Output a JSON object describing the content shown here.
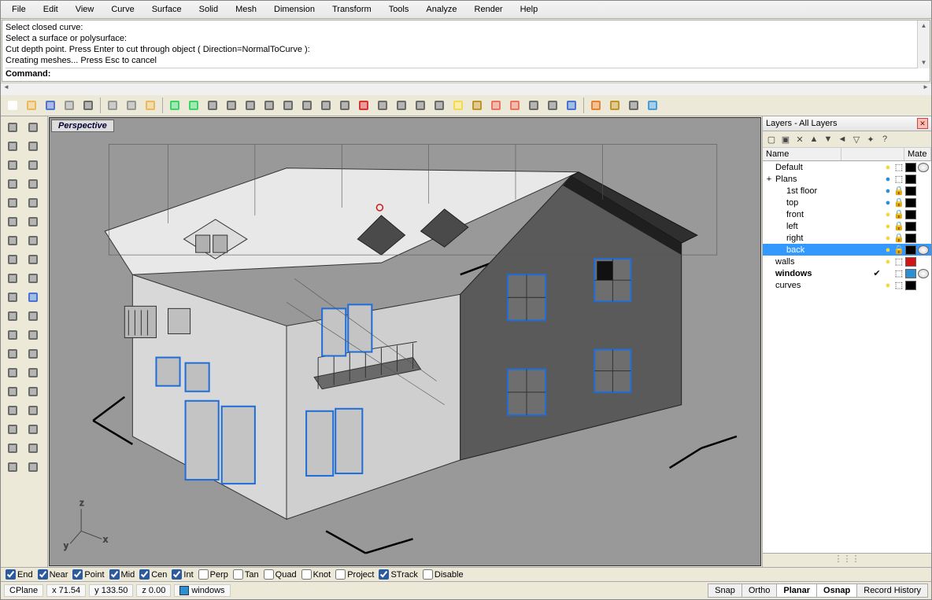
{
  "menu": [
    "File",
    "Edit",
    "View",
    "Curve",
    "Surface",
    "Solid",
    "Mesh",
    "Dimension",
    "Transform",
    "Tools",
    "Analyze",
    "Render",
    "Help"
  ],
  "command_history": [
    "Select closed curve:",
    "Select a surface or polysurface:",
    "Cut depth point. Press Enter to cut through object ( Direction=NormalToCurve ):",
    "Creating meshes... Press Esc to cancel"
  ],
  "command_label": "Command:",
  "command_value": "",
  "viewport_label": "Perspective",
  "layers_panel_title": "Layers - All Layers",
  "layer_columns": {
    "name": "Name",
    "mate": "Mate"
  },
  "layers": [
    {
      "name": "Default",
      "indent": 0,
      "exp": "",
      "bulb": "#f5d73a",
      "locked": false,
      "color": "#000000",
      "mat": true
    },
    {
      "name": "Plans",
      "indent": 0,
      "exp": "+",
      "bulb": "#2b8fd6",
      "locked": false,
      "color": "#000000"
    },
    {
      "name": "1st floor",
      "indent": 1,
      "bulb": "#2b8fd6",
      "locked": true,
      "color": "#000000"
    },
    {
      "name": "top",
      "indent": 1,
      "bulb": "#2b8fd6",
      "locked": true,
      "color": "#000000"
    },
    {
      "name": "front",
      "indent": 1,
      "bulb": "#f5d73a",
      "locked": true,
      "color": "#000000"
    },
    {
      "name": "left",
      "indent": 1,
      "bulb": "#f5d73a",
      "locked": true,
      "color": "#000000"
    },
    {
      "name": "right",
      "indent": 1,
      "bulb": "#f5d73a",
      "locked": true,
      "color": "#000000"
    },
    {
      "name": "back",
      "indent": 1,
      "bulb": "#f5d73a",
      "locked": true,
      "color": "#000000",
      "mat": true,
      "selected": true
    },
    {
      "name": "walls",
      "indent": 0,
      "bulb": "#f5d73a",
      "locked": false,
      "color": "#d01515"
    },
    {
      "name": "windows",
      "indent": 0,
      "bold": true,
      "checked": true,
      "color": "#2b8fd6",
      "mat": true
    },
    {
      "name": "curves",
      "indent": 0,
      "bulb": "#f5d73a",
      "locked": false,
      "color": "#000000"
    }
  ],
  "osnaps": [
    {
      "label": "End",
      "on": true
    },
    {
      "label": "Near",
      "on": true
    },
    {
      "label": "Point",
      "on": true
    },
    {
      "label": "Mid",
      "on": true
    },
    {
      "label": "Cen",
      "on": true
    },
    {
      "label": "Int",
      "on": true
    },
    {
      "label": "Perp",
      "on": false
    },
    {
      "label": "Tan",
      "on": false
    },
    {
      "label": "Quad",
      "on": false
    },
    {
      "label": "Knot",
      "on": false
    },
    {
      "label": "Project",
      "on": false
    },
    {
      "label": "STrack",
      "on": true
    },
    {
      "label": "Disable",
      "on": false
    }
  ],
  "status": {
    "cplane": "CPlane",
    "x": "x 71.54",
    "y": "y 133.50",
    "z": "z 0.00",
    "layer": "windows",
    "layer_color": "#2b8fd6",
    "toggles": [
      "Snap",
      "Ortho",
      "Planar",
      "Osnap",
      "Record History"
    ],
    "active": [
      "Planar",
      "Osnap"
    ]
  },
  "toolbar_icons": [
    "new",
    "open",
    "save",
    "print",
    "paste-special",
    "|",
    "cut",
    "copy",
    "paste",
    "|",
    "undo",
    "redo",
    "pan",
    "zoom-target",
    "zoom-in",
    "zoom-extents",
    "zoom-sel",
    "zoom-prev",
    "rotate",
    "grid",
    "car",
    "shade",
    "render",
    "hide",
    "show",
    "light",
    "lock",
    "layers",
    "color",
    "circle",
    "sphere-wire",
    "sphere",
    "|",
    "flag",
    "options",
    "tree",
    "help"
  ],
  "left_icons": [
    "arrow",
    "pt4",
    "line",
    "line2",
    "curve",
    "curve2",
    "spiral",
    "circle-c",
    "circle-p",
    "ellipse",
    "arc",
    "arc2",
    "rect",
    "poly",
    "srf-corner",
    "srf-pts",
    "srf-edge",
    "extrude",
    "box",
    "sphere",
    "cylinder",
    "cone",
    "gear",
    "extrude2",
    "array",
    "mirror",
    "blend",
    "trim",
    "split",
    "join",
    "text",
    "dim",
    "annotate",
    "leader",
    "cplane",
    "cplane2",
    "render-v",
    "render-s"
  ],
  "colors": {
    "bg": "#999999",
    "wall_light": "#d8d8d8",
    "wall_mid": "#b8b8b8",
    "wall_dark": "#5a5a5a",
    "roof_light": "#e8e8e8",
    "roof_dark": "#3a3a3a",
    "window_sel": "#1e6dd8",
    "line": "#000000"
  },
  "axis_labels": {
    "x": "x",
    "y": "y",
    "z": "z"
  }
}
